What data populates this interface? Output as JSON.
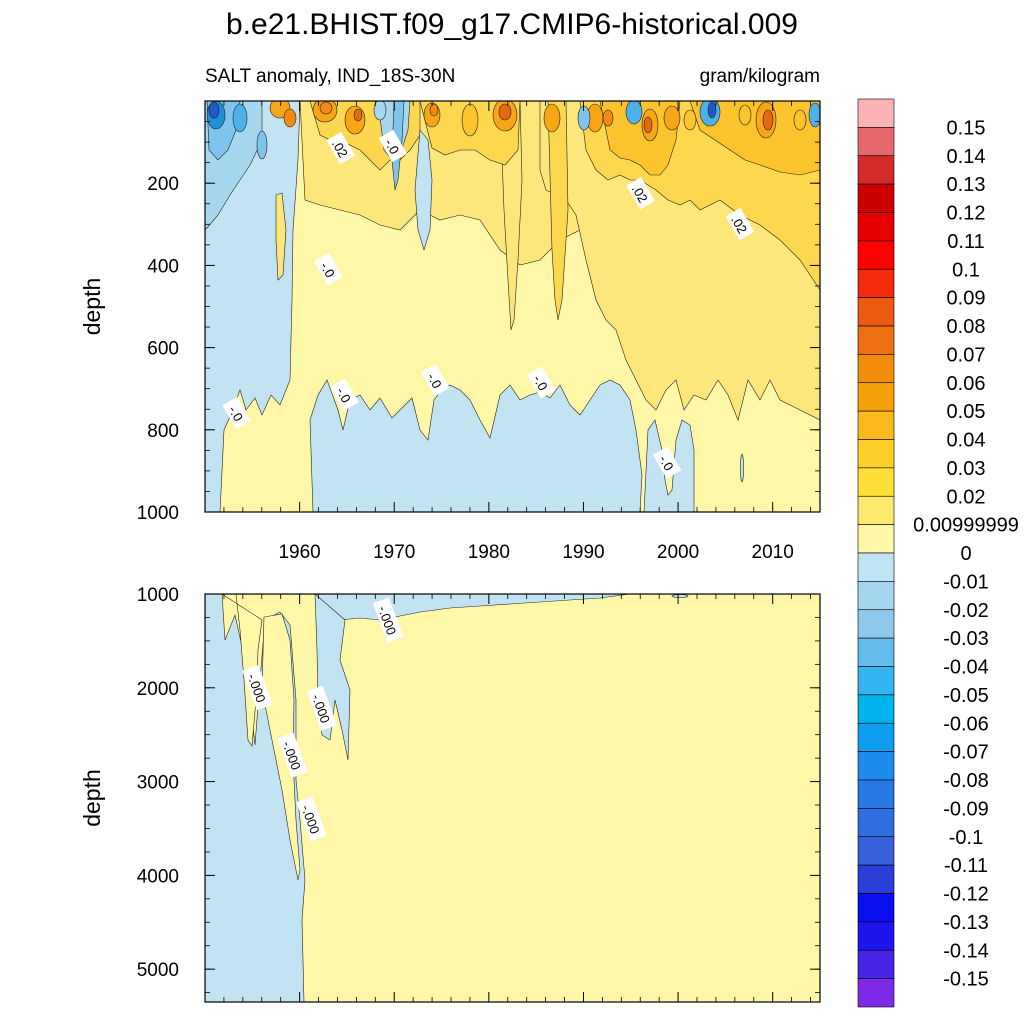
{
  "chart_data": {
    "type": "heatmap",
    "title": "b.e21.BHIST.f09_g17.CMIP6-historical.009",
    "subtitle_left": "SALT anomaly, IND_18S-30N",
    "subtitle_right": "gram/kilogram",
    "colors": {
      "ylight": "#FFF7A8",
      "y1": "#FEE77A",
      "y2": "#FDD84F",
      "y3": "#FCC42C",
      "o1": "#F8A616",
      "o2": "#F28A0E",
      "o3": "#E56A0F",
      "r1": "#D74A14",
      "bpale": "#C2E3F2",
      "b1": "#A7D7EE",
      "b2": "#7FC4EA",
      "b3": "#4DB0E8",
      "b4": "#1F8FD8",
      "b5": "#2457C8",
      "line": "#222222"
    },
    "panels": [
      {
        "name": "upper",
        "x_range": [
          1950,
          2015
        ],
        "x_ticks": [
          1960,
          1970,
          1980,
          1990,
          2000,
          2010
        ],
        "x_tick_labels": [
          "1960",
          "1970",
          "1980",
          "1990",
          "2000",
          "2010"
        ],
        "y_range": [
          0,
          1000
        ],
        "y_ticks": [
          200,
          400,
          600,
          800,
          1000
        ],
        "y_tick_labels": [
          "200",
          "400",
          "600",
          "800",
          "1000"
        ],
        "ylabel": "depth",
        "contour_labels": [
          {
            "text": ".02",
            "x": 1964.3,
            "y": 115
          },
          {
            "text": "-.0",
            "x": 1969.8,
            "y": 110
          },
          {
            "text": ".02",
            "x": 1996.0,
            "y": 225
          },
          {
            "text": ".02",
            "x": 2006.5,
            "y": 300
          },
          {
            "text": "-.0",
            "x": 1963.0,
            "y": 410
          },
          {
            "text": "-.0",
            "x": 1953.3,
            "y": 760
          },
          {
            "text": "-.0",
            "x": 1964.7,
            "y": 715
          },
          {
            "text": "-.0",
            "x": 1974.3,
            "y": 680
          },
          {
            "text": "-.0",
            "x": 1985.5,
            "y": 685
          },
          {
            "text": "-.0",
            "x": 1998.8,
            "y": 880
          }
        ]
      },
      {
        "name": "lower",
        "x_range": [
          1950,
          2015
        ],
        "x_ticks": [
          1960,
          1970,
          1980,
          1990,
          2000,
          2010
        ],
        "x_tick_labels": [],
        "y_range": [
          1000,
          5350
        ],
        "y_ticks": [
          1000,
          2000,
          3000,
          4000,
          5000
        ],
        "y_tick_labels": [
          "1000",
          "2000",
          "3000",
          "4000",
          "5000"
        ],
        "ylabel": "depth",
        "contour_labels": [
          {
            "text": "-.000",
            "x": 1969.3,
            "y": 1280
          },
          {
            "text": "-.000",
            "x": 1955.5,
            "y": 2000
          },
          {
            "text": "-.000",
            "x": 1962.3,
            "y": 2220
          },
          {
            "text": "-.000",
            "x": 1959.2,
            "y": 2720
          },
          {
            "text": "-.000",
            "x": 1961.2,
            "y": 3400
          }
        ]
      }
    ],
    "colorbar": {
      "labels": [
        "0.15",
        "0.14",
        "0.13",
        "0.12",
        "0.11",
        "0.1",
        "0.09",
        "0.08",
        "0.07",
        "0.06",
        "0.05",
        "0.04",
        "0.03",
        "0.02",
        "0.00999999",
        "0",
        "-0.01",
        "-0.02",
        "-0.03",
        "-0.04",
        "-0.05",
        "-0.06",
        "-0.07",
        "-0.08",
        "-0.09",
        "-0.1",
        "-0.11",
        "-0.12",
        "-0.13",
        "-0.14",
        "-0.15"
      ],
      "colors": [
        "#FBB3B6",
        "#E5676C",
        "#D42A2A",
        "#CC0000",
        "#E60000",
        "#FF0000",
        "#F42C0C",
        "#EB5A10",
        "#EE6E12",
        "#F28C0C",
        "#F5A10A",
        "#FBB91E",
        "#FDCF28",
        "#FDDF38",
        "#FEEB6E",
        "#FFF7A8",
        "#C2E3F2",
        "#A7D7EE",
        "#8FC8EB",
        "#65BDEE",
        "#32B4F0",
        "#00B4EE",
        "#0F9DF0",
        "#1E8CEE",
        "#2878E6",
        "#2F6EE0",
        "#3860DA",
        "#2A3FD8",
        "#0A10F0",
        "#1E14EC",
        "#4824E6",
        "#7C2AE6"
      ]
    }
  }
}
